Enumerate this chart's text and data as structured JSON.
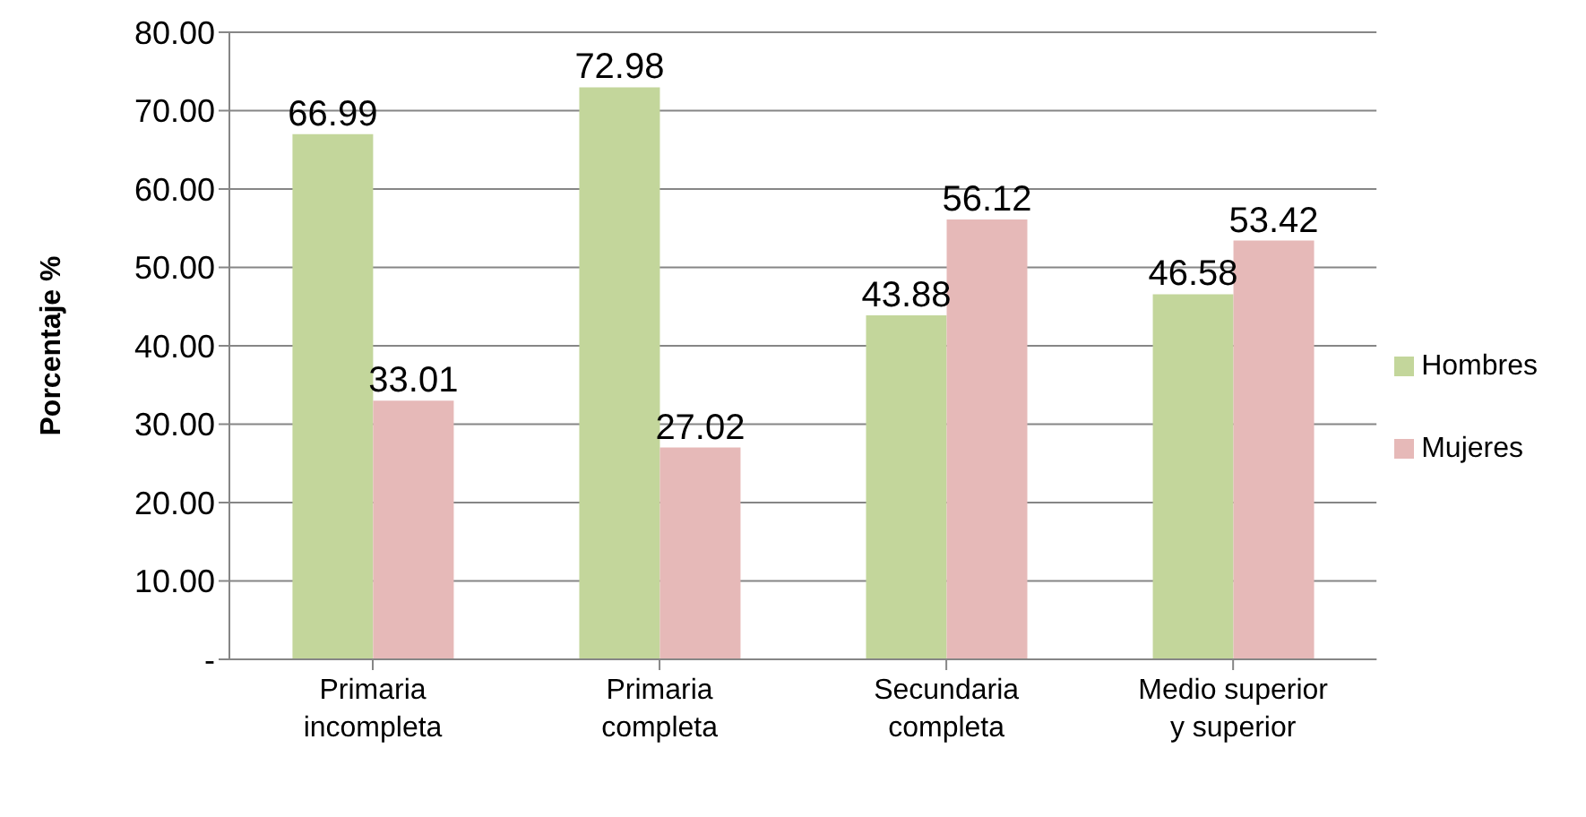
{
  "chart_data": {
    "type": "bar",
    "ylabel": "Porcentaje %",
    "categories": [
      "Primaria incompleta",
      "Primaria completa",
      "Secundaria completa",
      "Medio superior y superior"
    ],
    "series": [
      {
        "name": "Hombres",
        "color": "#c3d69b",
        "values": [
          66.99,
          72.98,
          43.88,
          46.58
        ]
      },
      {
        "name": "Mujeres",
        "color": "#e6b9b8",
        "values": [
          33.01,
          27.02,
          56.12,
          53.42
        ]
      }
    ],
    "ylim": [
      0,
      80
    ],
    "yticks": [
      {
        "value": 0,
        "label": "-"
      },
      {
        "value": 10,
        "label": "10.00"
      },
      {
        "value": 20,
        "label": "20.00"
      },
      {
        "value": 30,
        "label": "30.00"
      },
      {
        "value": 40,
        "label": "40.00"
      },
      {
        "value": 50,
        "label": "50.00"
      },
      {
        "value": 60,
        "label": "60.00"
      },
      {
        "value": 70,
        "label": "70.00"
      },
      {
        "value": 80,
        "label": "80.00"
      }
    ],
    "grid": "y",
    "legend": "right",
    "data_labels": true
  }
}
